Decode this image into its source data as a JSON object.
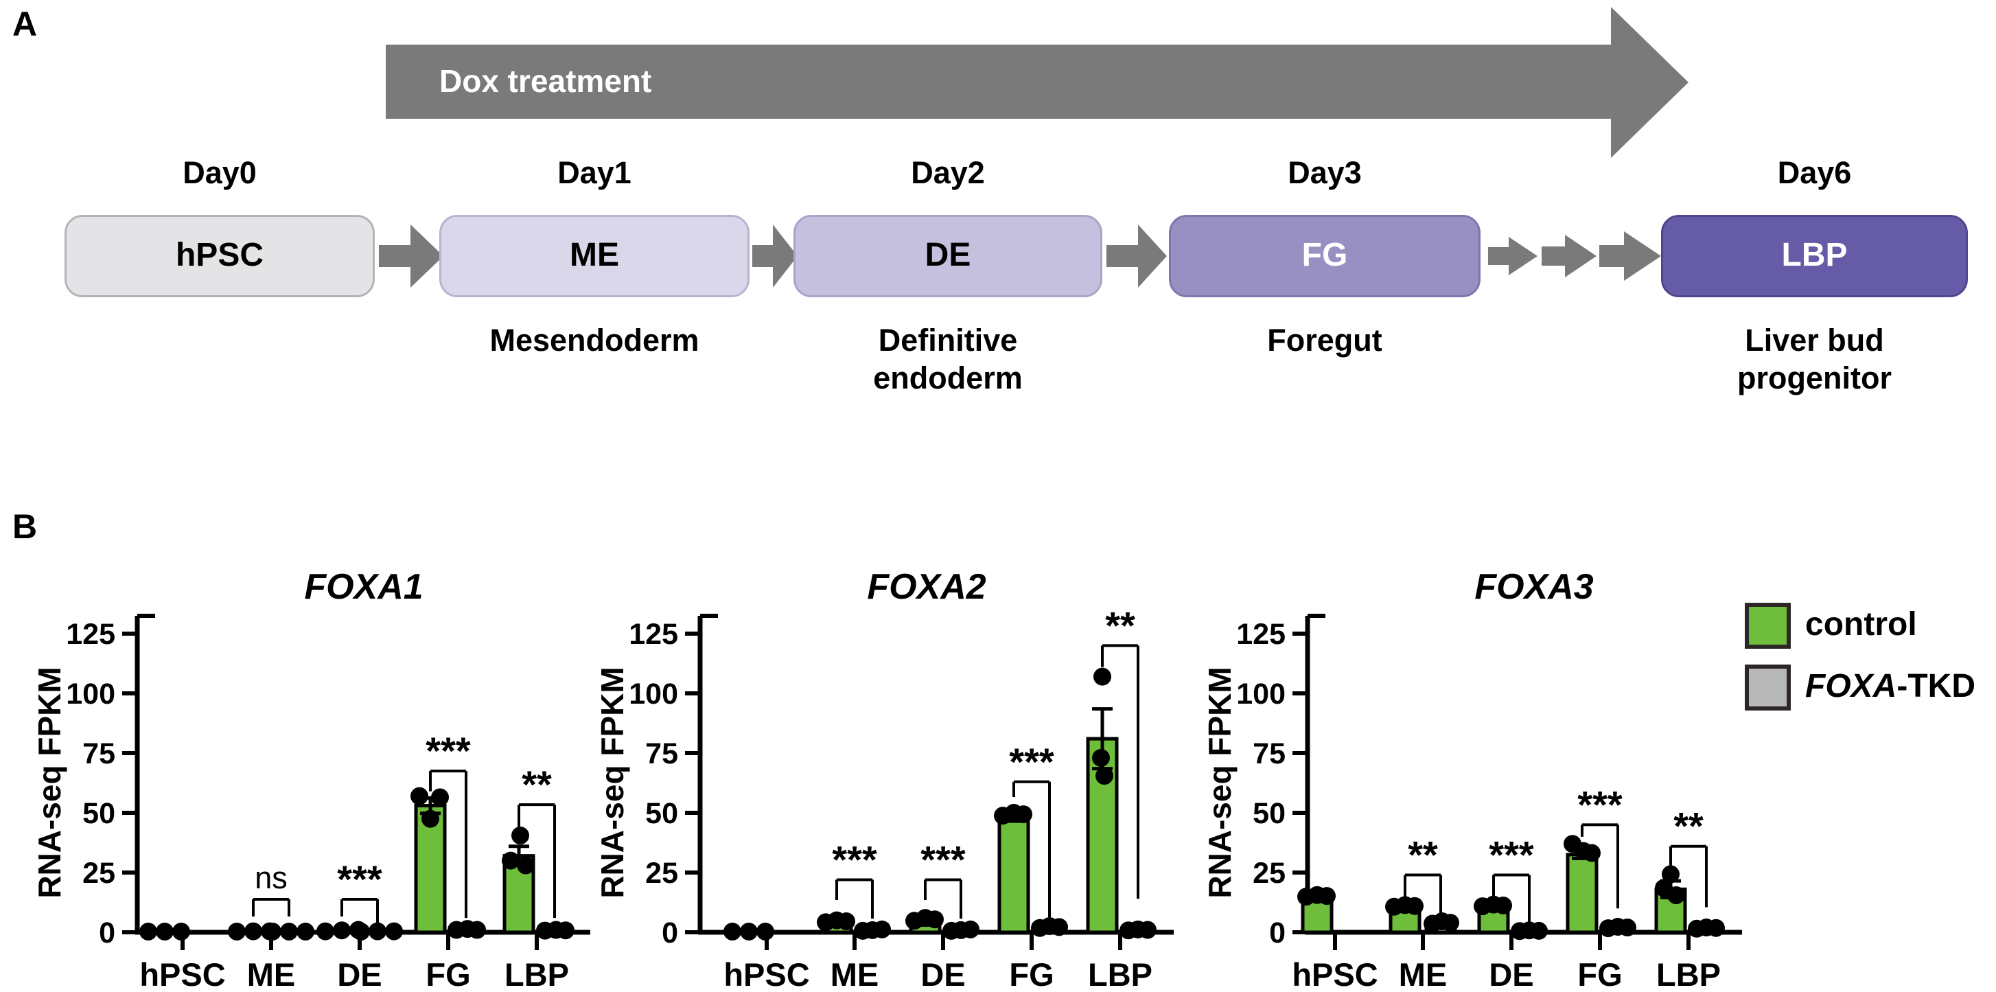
{
  "panel_a": {
    "label": "A",
    "dox_arrow": {
      "label": "Dox treatment",
      "color": "#7a7a7a",
      "text_color": "#ffffff"
    },
    "stages": [
      {
        "day": "Day0",
        "abbr": "hPSC",
        "name": "",
        "fill": "#e4e3e6",
        "border": "#b5b3b8",
        "text_color": "#000000"
      },
      {
        "day": "Day1",
        "abbr": "ME",
        "name": "Mesendoderm",
        "fill": "#d9d7e9",
        "border": "#b7b4d0",
        "text_color": "#000000"
      },
      {
        "day": "Day2",
        "abbr": "DE",
        "name": "Definitive\nendoderm",
        "fill": "#c4c0dd",
        "border": "#a9a4c9",
        "text_color": "#000000"
      },
      {
        "day": "Day3",
        "abbr": "FG",
        "name": "Foregut",
        "fill": "#988fc2",
        "border": "#7f76ad",
        "text_color": "#ffffff"
      },
      {
        "day": "Day6",
        "abbr": "LBP",
        "name": "Liver bud\nprogenitor",
        "fill": "#655ba7",
        "border": "#4f4590",
        "text_color": "#ffffff"
      }
    ]
  },
  "panel_b": {
    "label": "B",
    "legend": [
      {
        "prefix_italic": "",
        "label": "control",
        "color": "#6fbe3b"
      },
      {
        "prefix_italic": "FOXA",
        "label": "-TKD",
        "color": "#b8b8b8"
      }
    ]
  },
  "chart_data": [
    {
      "type": "bar",
      "title": "FOXA1",
      "ylabel": "RNA-seq FPKM",
      "ylim": [
        0,
        125
      ],
      "yticks": [
        0,
        25,
        50,
        75,
        100,
        125
      ],
      "categories": [
        "hPSC",
        "ME",
        "DE",
        "FG",
        "LBP"
      ],
      "series": [
        {
          "name": "control",
          "color": "#6fbe3b",
          "values": [
            0.3,
            0.4,
            0.8,
            53,
            32
          ],
          "sem": [
            0,
            0,
            0,
            3.2,
            4
          ],
          "points": [
            [
              {
                "dx": -24,
                "v": 0.3
              },
              {
                "dx": 0,
                "v": 0.3
              },
              {
                "dx": 24,
                "v": 0.3
              }
            ],
            [
              {
                "dx": -24,
                "v": 0.3
              },
              {
                "dx": 0,
                "v": 0.4
              },
              {
                "dx": 24,
                "v": 0.4
              }
            ],
            [
              {
                "dx": -24,
                "v": 0.4
              },
              {
                "dx": 0,
                "v": 0.8
              },
              {
                "dx": 24,
                "v": 1.0
              }
            ],
            [
              {
                "dx": -16,
                "v": 57
              },
              {
                "dx": 14,
                "v": 56.5
              },
              {
                "dx": 0,
                "v": 47.5
              }
            ],
            [
              {
                "dx": 2,
                "v": 40.5
              },
              {
                "dx": -12,
                "v": 30
              },
              {
                "dx": 10,
                "v": 28
              }
            ]
          ]
        },
        {
          "name": "FOXA-TKD",
          "color": "#b8b8b8",
          "values": [
            null,
            0.3,
            0.4,
            1.0,
            0.8
          ],
          "sem": [
            0,
            0,
            0,
            0,
            0
          ],
          "points": [
            [],
            [
              {
                "dx": -24,
                "v": 0.3
              },
              {
                "dx": 0,
                "v": 0.3
              },
              {
                "dx": 24,
                "v": 0.3
              }
            ],
            [
              {
                "dx": -24,
                "v": 0.3
              },
              {
                "dx": 0,
                "v": 0.4
              },
              {
                "dx": 24,
                "v": 0.4
              }
            ],
            [
              {
                "dx": -14,
                "v": 1.0
              },
              {
                "dx": 2,
                "v": 1.4
              },
              {
                "dx": 16,
                "v": 1.0
              }
            ],
            [
              {
                "dx": -14,
                "v": 0.7
              },
              {
                "dx": 2,
                "v": 1.0
              },
              {
                "dx": 16,
                "v": 0.8
              }
            ]
          ]
        }
      ],
      "significance": [
        {
          "category": "ME",
          "label": "ns",
          "top": 13.8,
          "left_arm": 6.6,
          "right_arm": 6.6
        },
        {
          "category": "DE",
          "label": "***",
          "top": 13.8,
          "left_arm": 6.6,
          "right_arm": 3.2
        },
        {
          "category": "FG",
          "label": "***",
          "top": 67.5,
          "left_arm": 59,
          "right_arm": 6
        },
        {
          "category": "LBP",
          "label": "**",
          "top": 53.4,
          "left_arm": 43,
          "right_arm": 6
        }
      ]
    },
    {
      "type": "bar",
      "title": "FOXA2",
      "ylabel": "RNA-seq FPKM",
      "ylim": [
        0,
        125
      ],
      "yticks": [
        0,
        25,
        50,
        75,
        100,
        125
      ],
      "categories": [
        "hPSC",
        "ME",
        "DE",
        "FG",
        "LBP"
      ],
      "series": [
        {
          "name": "control",
          "color": "#6fbe3b",
          "values": [
            0.3,
            3.4,
            4.0,
            47.5,
            81
          ],
          "sem": [
            0,
            0.8,
            1.0,
            1.0,
            12.5
          ],
          "points": [
            [
              {
                "dx": -24,
                "v": 0.3
              },
              {
                "dx": 0,
                "v": 0.3
              },
              {
                "dx": 24,
                "v": 0.3
              }
            ],
            [
              {
                "dx": -16,
                "v": 4.2
              },
              {
                "dx": 0,
                "v": 5.0
              },
              {
                "dx": 14,
                "v": 4.6
              }
            ],
            [
              {
                "dx": -16,
                "v": 4.8
              },
              {
                "dx": 0,
                "v": 6.0
              },
              {
                "dx": 14,
                "v": 5.4
              }
            ],
            [
              {
                "dx": -16,
                "v": 48.8
              },
              {
                "dx": 0,
                "v": 50
              },
              {
                "dx": 14,
                "v": 49.4
              }
            ],
            [
              {
                "dx": 0,
                "v": 107
              },
              {
                "dx": -2,
                "v": 73
              },
              {
                "dx": 3,
                "v": 65.5
              }
            ]
          ]
        },
        {
          "name": "FOXA-TKD",
          "color": "#b8b8b8",
          "values": [
            null,
            0.7,
            0.7,
            1.5,
            1.0
          ],
          "sem": [
            0,
            0,
            0,
            0,
            0
          ],
          "points": [
            [],
            [
              {
                "dx": -14,
                "v": 0.6
              },
              {
                "dx": 0,
                "v": 0.9
              },
              {
                "dx": 14,
                "v": 1.2
              }
            ],
            [
              {
                "dx": -14,
                "v": 0.6
              },
              {
                "dx": 0,
                "v": 0.9
              },
              {
                "dx": 14,
                "v": 1.2
              }
            ],
            [
              {
                "dx": -14,
                "v": 1.8
              },
              {
                "dx": 0,
                "v": 2.6
              },
              {
                "dx": 14,
                "v": 2.2
              }
            ],
            [
              {
                "dx": -14,
                "v": 0.8
              },
              {
                "dx": 0,
                "v": 1.2
              },
              {
                "dx": 14,
                "v": 1.0
              }
            ]
          ]
        }
      ],
      "significance": [
        {
          "category": "ME",
          "label": "***",
          "top": 22,
          "left_arm": 13.5,
          "right_arm": 5.7
        },
        {
          "category": "DE",
          "label": "***",
          "top": 22,
          "left_arm": 13.5,
          "right_arm": 5.7
        },
        {
          "category": "FG",
          "label": "***",
          "top": 63,
          "left_arm": 56.6,
          "right_arm": 6.3
        },
        {
          "category": "LBP",
          "label": "**",
          "top": 120,
          "left_arm": 111,
          "right_arm": 14
        }
      ]
    },
    {
      "type": "bar",
      "title": "FOXA3",
      "ylabel": "RNA-seq FPKM",
      "ylim": [
        0,
        125
      ],
      "yticks": [
        0,
        25,
        50,
        75,
        100,
        125
      ],
      "categories": [
        "hPSC",
        "ME",
        "DE",
        "FG",
        "LBP"
      ],
      "series": [
        {
          "name": "control",
          "color": "#6fbe3b",
          "values": [
            13.8,
            9.5,
            9.7,
            32.5,
            18
          ],
          "sem": [
            0.8,
            0.8,
            0.7,
            1.6,
            3.5
          ],
          "points": [
            [
              {
                "dx": -16,
                "v": 14.9
              },
              {
                "dx": 0,
                "v": 15.6
              },
              {
                "dx": 14,
                "v": 15.2
              }
            ],
            [
              {
                "dx": -16,
                "v": 10.7
              },
              {
                "dx": 0,
                "v": 11.4
              },
              {
                "dx": 14,
                "v": 11.0
              }
            ],
            [
              {
                "dx": -16,
                "v": 10.9
              },
              {
                "dx": 0,
                "v": 11.6
              },
              {
                "dx": 14,
                "v": 11.2
              }
            ],
            [
              {
                "dx": -14,
                "v": 37
              },
              {
                "dx": 2,
                "v": 34
              },
              {
                "dx": 14,
                "v": 33.2
              }
            ],
            [
              {
                "dx": 0,
                "v": 24.3
              },
              {
                "dx": -10,
                "v": 18.5
              },
              {
                "dx": 8,
                "v": 15.5
              }
            ]
          ]
        },
        {
          "name": "FOXA-TKD",
          "color": "#b8b8b8",
          "values": [
            null,
            3.7,
            0.6,
            1.8,
            1.5
          ],
          "sem": [
            0,
            1.0,
            0,
            0,
            0
          ],
          "points": [
            [],
            [
              {
                "dx": -12,
                "v": 3.6
              },
              {
                "dx": 2,
                "v": 4.6
              },
              {
                "dx": 14,
                "v": 4.0
              }
            ],
            [
              {
                "dx": -14,
                "v": 0.5
              },
              {
                "dx": 0,
                "v": 0.8
              },
              {
                "dx": 14,
                "v": 0.6
              }
            ],
            [
              {
                "dx": -14,
                "v": 1.7
              },
              {
                "dx": 0,
                "v": 2.3
              },
              {
                "dx": 14,
                "v": 2.0
              }
            ],
            [
              {
                "dx": -14,
                "v": 1.5
              },
              {
                "dx": 0,
                "v": 2.0
              },
              {
                "dx": 14,
                "v": 1.8
              }
            ]
          ]
        }
      ],
      "significance": [
        {
          "category": "ME",
          "label": "**",
          "top": 24,
          "left_arm": 13,
          "right_arm": 7.5
        },
        {
          "category": "DE",
          "label": "***",
          "top": 24,
          "left_arm": 13.5,
          "right_arm": 3
        },
        {
          "category": "FG",
          "label": "***",
          "top": 45,
          "left_arm": 40,
          "right_arm": 10
        },
        {
          "category": "LBP",
          "label": "**",
          "top": 36,
          "left_arm": 28,
          "right_arm": 10.5
        }
      ]
    }
  ]
}
